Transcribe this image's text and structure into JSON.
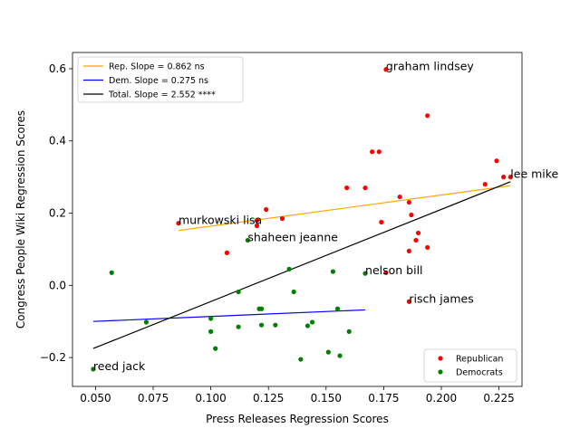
{
  "chart_data": {
    "type": "scatter",
    "xlabel": "Press Releases Regression Scores",
    "ylabel": "Congress People Wiki Regression Scores",
    "xlim": [
      0.04,
      0.235
    ],
    "ylim": [
      -0.28,
      0.645
    ],
    "xticks": [
      0.05,
      0.075,
      0.1,
      0.125,
      0.15,
      0.175,
      0.2,
      0.225
    ],
    "xtick_labels": [
      "0.050",
      "0.075",
      "0.100",
      "0.125",
      "0.150",
      "0.175",
      "0.200",
      "0.225"
    ],
    "yticks": [
      -0.2,
      0.0,
      0.2,
      0.4,
      0.6
    ],
    "ytick_labels": [
      "−0.2",
      "0.0",
      "0.2",
      "0.4",
      "0.6"
    ],
    "grid": false,
    "series": [
      {
        "name": "Republican",
        "color": "#ff0000",
        "points": [
          [
            0.086,
            0.172
          ],
          [
            0.107,
            0.09
          ],
          [
            0.12,
            0.165
          ],
          [
            0.12,
            0.18
          ],
          [
            0.124,
            0.21
          ],
          [
            0.131,
            0.185
          ],
          [
            0.159,
            0.27
          ],
          [
            0.167,
            0.27
          ],
          [
            0.17,
            0.37
          ],
          [
            0.173,
            0.37
          ],
          [
            0.174,
            0.175
          ],
          [
            0.176,
            0.035
          ],
          [
            0.176,
            0.598
          ],
          [
            0.182,
            0.245
          ],
          [
            0.186,
            0.095
          ],
          [
            0.186,
            0.23
          ],
          [
            0.187,
            0.195
          ],
          [
            0.189,
            0.125
          ],
          [
            0.19,
            0.145
          ],
          [
            0.194,
            0.105
          ],
          [
            0.194,
            0.47
          ],
          [
            0.219,
            0.28
          ],
          [
            0.224,
            0.345
          ],
          [
            0.227,
            0.3
          ],
          [
            0.23,
            0.3
          ],
          [
            0.186,
            -0.045
          ]
        ]
      },
      {
        "name": "Democrats",
        "color": "#008000",
        "points": [
          [
            0.049,
            -0.232
          ],
          [
            0.057,
            0.035
          ],
          [
            0.072,
            -0.102
          ],
          [
            0.1,
            -0.092
          ],
          [
            0.1,
            -0.128
          ],
          [
            0.102,
            -0.175
          ],
          [
            0.112,
            -0.018
          ],
          [
            0.112,
            -0.115
          ],
          [
            0.116,
            0.125
          ],
          [
            0.121,
            -0.065
          ],
          [
            0.122,
            -0.065
          ],
          [
            0.122,
            -0.11
          ],
          [
            0.128,
            -0.11
          ],
          [
            0.134,
            0.045
          ],
          [
            0.136,
            -0.018
          ],
          [
            0.139,
            -0.205
          ],
          [
            0.142,
            -0.112
          ],
          [
            0.144,
            -0.102
          ],
          [
            0.151,
            -0.185
          ],
          [
            0.153,
            0.038
          ],
          [
            0.155,
            -0.065
          ],
          [
            0.156,
            -0.195
          ],
          [
            0.16,
            -0.128
          ],
          [
            0.167,
            0.033
          ]
        ]
      }
    ],
    "fit_lines": [
      {
        "label": "Rep. Slope = 0.862 ns",
        "color": "#ffa500",
        "x": [
          0.086,
          0.23
        ],
        "y": [
          0.152,
          0.276
        ]
      },
      {
        "label": "Dem. Slope = 0.275 ns",
        "color": "#0000ff",
        "x": [
          0.049,
          0.167
        ],
        "y": [
          -0.1,
          -0.068
        ]
      },
      {
        "label": "Total. Slope = 2.552 ****",
        "color": "#000000",
        "x": [
          0.049,
          0.23
        ],
        "y": [
          -0.175,
          0.287
        ]
      }
    ],
    "annotations": [
      {
        "text": "graham lindsey",
        "x": 0.176,
        "y": 0.598
      },
      {
        "text": "lee mike",
        "x": 0.23,
        "y": 0.3
      },
      {
        "text": "murkowski lisa",
        "x": 0.086,
        "y": 0.172
      },
      {
        "text": "shaheen jeanne",
        "x": 0.116,
        "y": 0.125
      },
      {
        "text": "nelson bill",
        "x": 0.167,
        "y": 0.033
      },
      {
        "text": "risch james",
        "x": 0.186,
        "y": -0.045
      },
      {
        "text": "reed jack",
        "x": 0.049,
        "y": -0.232
      }
    ],
    "legend_lines_position": "upper-left",
    "legend_points_position": "lower-right"
  }
}
